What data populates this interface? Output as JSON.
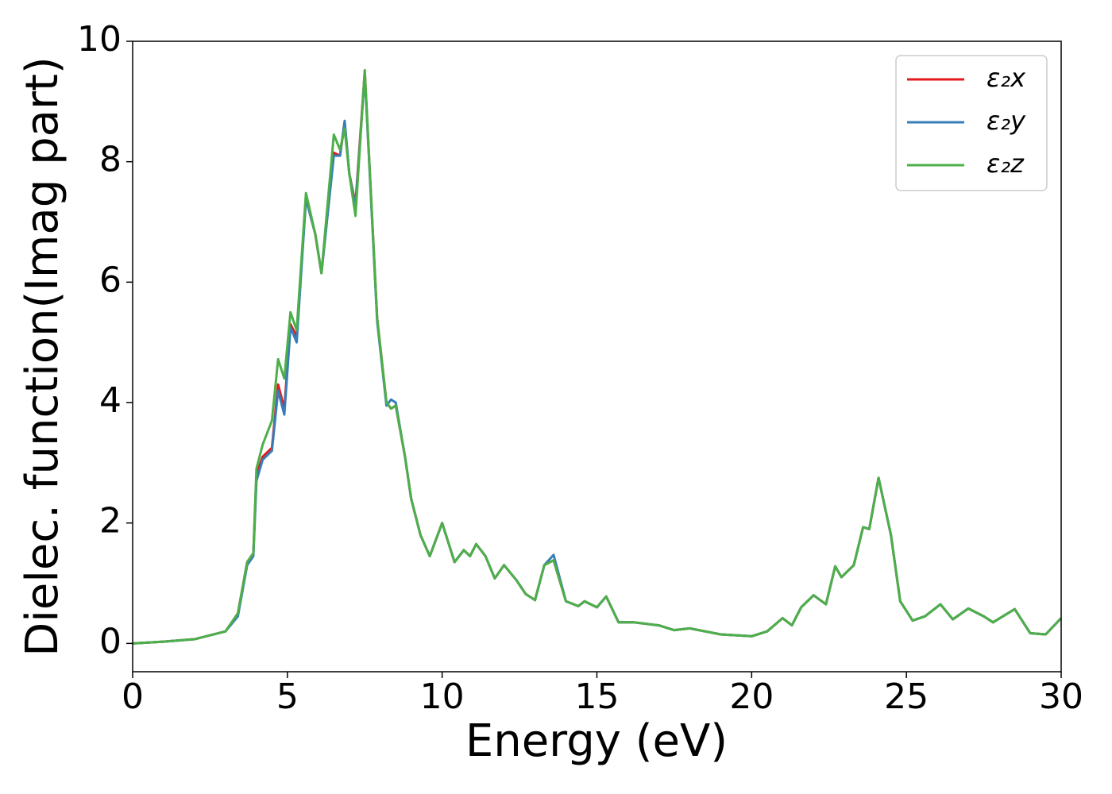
{
  "chart_data": {
    "type": "line",
    "xlabel": "Energy (eV)",
    "ylabel": "Dielec. function(Imag part)",
    "xlim": [
      0,
      30
    ],
    "ylim": [
      -0.47,
      10
    ],
    "xticks": [
      0,
      5,
      10,
      15,
      20,
      25,
      30
    ],
    "yticks": [
      0,
      2,
      4,
      6,
      8,
      10
    ],
    "legend": "upper right",
    "grid": false,
    "x": [
      0,
      1,
      2,
      3,
      3.4,
      3.7,
      3.9,
      4.0,
      4.2,
      4.5,
      4.7,
      4.9,
      5.1,
      5.3,
      5.6,
      5.9,
      6.1,
      6.5,
      6.7,
      6.85,
      7.0,
      7.2,
      7.5,
      7.9,
      8.2,
      8.35,
      8.5,
      8.8,
      9.0,
      9.3,
      9.6,
      10.0,
      10.4,
      10.7,
      10.9,
      11.1,
      11.4,
      11.7,
      12.0,
      12.4,
      12.7,
      13.0,
      13.3,
      13.6,
      14.0,
      14.4,
      14.6,
      15.0,
      15.3,
      15.7,
      16.2,
      17.0,
      17.5,
      18.0,
      19.0,
      20.0,
      20.5,
      21.0,
      21.3,
      21.6,
      22.0,
      22.4,
      22.7,
      22.9,
      23.3,
      23.6,
      23.8,
      24.1,
      24.5,
      24.8,
      25.2,
      25.6,
      26.1,
      26.5,
      27.0,
      27.5,
      27.8,
      28.5,
      29.0,
      29.5,
      30.0
    ],
    "series": [
      {
        "name": "ε₂x",
        "color": "#e41a1c",
        "values": [
          0,
          0.03,
          0.07,
          0.2,
          0.5,
          1.35,
          1.5,
          2.8,
          3.1,
          3.25,
          4.3,
          3.9,
          5.3,
          5.1,
          7.4,
          6.8,
          6.15,
          8.15,
          8.1,
          8.65,
          7.8,
          7.3,
          9.5,
          5.4,
          4.0,
          3.9,
          3.95,
          3.1,
          2.4,
          1.8,
          1.45,
          2.0,
          1.35,
          1.55,
          1.45,
          1.65,
          1.45,
          1.08,
          1.3,
          1.05,
          0.82,
          0.72,
          1.3,
          1.38,
          0.7,
          0.62,
          0.7,
          0.6,
          0.78,
          0.35,
          0.35,
          0.3,
          0.22,
          0.25,
          0.15,
          0.12,
          0.2,
          0.42,
          0.3,
          0.6,
          0.8,
          0.65,
          1.28,
          1.1,
          1.3,
          1.93,
          1.9,
          2.75,
          1.8,
          0.7,
          0.38,
          0.45,
          0.65,
          0.4,
          0.58,
          0.45,
          0.35,
          0.57,
          0.17,
          0.15,
          0.42
        ]
      },
      {
        "name": "ε₂y",
        "color": "#377eb8",
        "values": [
          0,
          0.03,
          0.07,
          0.2,
          0.45,
          1.3,
          1.45,
          2.7,
          3.05,
          3.2,
          4.2,
          3.8,
          5.25,
          5.0,
          7.38,
          6.8,
          6.15,
          8.1,
          8.1,
          8.68,
          7.8,
          7.25,
          9.45,
          5.35,
          3.95,
          4.05,
          4.0,
          3.1,
          2.4,
          1.8,
          1.45,
          2.0,
          1.35,
          1.55,
          1.45,
          1.65,
          1.45,
          1.08,
          1.3,
          1.05,
          0.82,
          0.72,
          1.3,
          1.47,
          0.7,
          0.62,
          0.7,
          0.6,
          0.78,
          0.35,
          0.35,
          0.3,
          0.22,
          0.25,
          0.15,
          0.12,
          0.2,
          0.42,
          0.3,
          0.6,
          0.8,
          0.65,
          1.28,
          1.1,
          1.3,
          1.93,
          1.9,
          2.75,
          1.8,
          0.7,
          0.38,
          0.45,
          0.65,
          0.4,
          0.58,
          0.45,
          0.35,
          0.57,
          0.17,
          0.15,
          0.42
        ]
      },
      {
        "name": "ε₂z",
        "color": "#4daf4a",
        "values": [
          0,
          0.03,
          0.07,
          0.2,
          0.5,
          1.35,
          1.5,
          2.9,
          3.3,
          3.7,
          4.72,
          4.4,
          5.5,
          5.2,
          7.48,
          6.8,
          6.15,
          8.45,
          8.2,
          8.55,
          7.8,
          7.1,
          9.52,
          5.4,
          4.0,
          3.9,
          3.95,
          3.1,
          2.4,
          1.8,
          1.45,
          2.0,
          1.35,
          1.55,
          1.45,
          1.65,
          1.45,
          1.08,
          1.3,
          1.05,
          0.82,
          0.72,
          1.3,
          1.38,
          0.7,
          0.62,
          0.7,
          0.6,
          0.78,
          0.35,
          0.35,
          0.3,
          0.22,
          0.25,
          0.15,
          0.12,
          0.2,
          0.42,
          0.3,
          0.6,
          0.8,
          0.65,
          1.28,
          1.1,
          1.3,
          1.93,
          1.9,
          2.75,
          1.8,
          0.7,
          0.38,
          0.45,
          0.65,
          0.4,
          0.58,
          0.45,
          0.35,
          0.57,
          0.17,
          0.15,
          0.42
        ]
      }
    ]
  }
}
